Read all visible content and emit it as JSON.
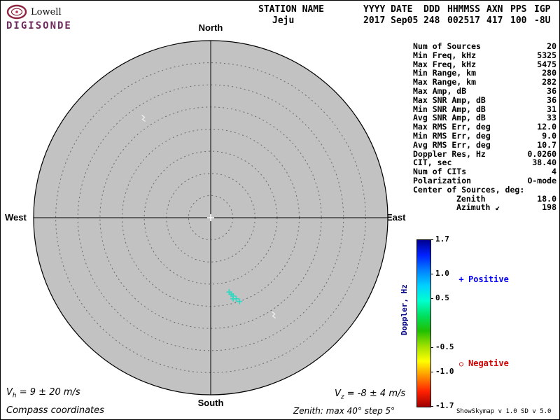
{
  "logo": {
    "name": "Lowell",
    "product": "DIGISONDE",
    "color": "#6e2a5c"
  },
  "header": {
    "columns": [
      {
        "label": "STATION NAME",
        "value": "Jeju"
      },
      {
        "label": "YYYY DATE",
        "value": "2017 Sep05"
      },
      {
        "label": "DDD",
        "value": "248"
      },
      {
        "label": "HHMMSS",
        "value": "002517"
      },
      {
        "label": "AXN",
        "value": "417"
      },
      {
        "label": "PPS",
        "value": "100"
      },
      {
        "label": "IGP",
        "value": "-8U"
      }
    ]
  },
  "compass": {
    "north": "North",
    "south": "South",
    "east": "East",
    "west": "West"
  },
  "info_panel": {
    "rows": [
      {
        "label": "Num of Sources",
        "value": "20"
      },
      {
        "label": "Min Freq, kHz",
        "value": "5325"
      },
      {
        "label": "Max Freq, kHz",
        "value": "5475"
      },
      {
        "label": "Min Range, km",
        "value": "280"
      },
      {
        "label": "Max Range, km",
        "value": "282"
      },
      {
        "label": "Max Amp, dB",
        "value": "36"
      },
      {
        "label": "Max SNR Amp, dB",
        "value": "36"
      },
      {
        "label": "Min SNR Amp, dB",
        "value": "31"
      },
      {
        "label": "Avg SNR Amp, dB",
        "value": "33"
      },
      {
        "label": "Max RMS Err, deg",
        "value": "12.0"
      },
      {
        "label": "Min RMS Err, deg",
        "value": "9.0"
      },
      {
        "label": "Avg RMS Err, deg",
        "value": "10.7"
      },
      {
        "label": "Doppler Res, Hz",
        "value": "0.0260"
      },
      {
        "label": "CIT, sec",
        "value": "38.40"
      },
      {
        "label": "Num of CITs",
        "value": "4"
      },
      {
        "label": "Polarization",
        "value": "O-mode"
      },
      {
        "label": "Center of Sources, deg:",
        "value": ""
      },
      {
        "label": "Zenith",
        "value": "18.0",
        "indent": true
      },
      {
        "label": "Azimuth",
        "value": "198",
        "indent": true,
        "icon_char": "↙"
      }
    ]
  },
  "colorbar": {
    "label": "Doppler, Hz",
    "label_color": "#00008b",
    "max": 1.7,
    "min": -1.7,
    "ticks": [
      "1.7",
      "1.0",
      "0.5",
      "-0.5",
      "-1.0",
      "-1.7"
    ],
    "tick_values": [
      1.7,
      1.0,
      0.5,
      -0.5,
      -1.0,
      -1.7
    ],
    "gradient": [
      "#000090",
      "#0020ff",
      "#0080ff",
      "#00d0ff",
      "#00ffd0",
      "#00e060",
      "#20c000",
      "#a0e000",
      "#ffff00",
      "#ff9000",
      "#ff2000",
      "#a00000"
    ]
  },
  "legend": {
    "positive": {
      "symbol": "+",
      "label": "Positive",
      "color": "#0000ee"
    },
    "negative": {
      "symbol": "○",
      "label": "Negative",
      "color": "#cc0000"
    }
  },
  "footer": {
    "vh": {
      "base": "V",
      "sub": "h",
      "rest": " = 9 ± 20 m/s"
    },
    "vz": {
      "base": "V",
      "sub": "z",
      "rest": " = -8 ± 4 m/s"
    },
    "coordinates_note": "Compass coordinates",
    "zenith_note": "Zenith: max 40°  step 5°",
    "version": "ShowSkymap v 1.0  SD v 5.0"
  },
  "chart_data": {
    "type": "scatter",
    "projection": "polar-skymap",
    "title": "",
    "plot_bg": "#c2c2c2",
    "grid": "dashed-rings",
    "zenith_max_deg": 40,
    "zenith_step_deg": 5,
    "compass_labels": [
      "North",
      "East",
      "South",
      "West"
    ],
    "colorbar": {
      "label": "Doppler, Hz",
      "min": -1.7,
      "max": 1.7,
      "tick_values": [
        1.7,
        1.0,
        0.5,
        -0.5,
        -1.0,
        -1.7
      ]
    },
    "sources": [
      {
        "azimuth_deg": 166,
        "zenith_deg": 17.3,
        "doppler_hz": 0.45,
        "marker": "plus",
        "color": "#2ed9c3"
      },
      {
        "azimuth_deg": 165,
        "zenith_deg": 17.9,
        "doppler_hz": 0.45,
        "marker": "plus",
        "color": "#2ed9c3"
      },
      {
        "azimuth_deg": 164,
        "zenith_deg": 18.4,
        "doppler_hz": 0.5,
        "marker": "plus",
        "color": "#2ed9c3"
      },
      {
        "azimuth_deg": 164.5,
        "zenith_deg": 19.0,
        "doppler_hz": 0.5,
        "marker": "plus",
        "color": "#2ed9c3"
      },
      {
        "azimuth_deg": 162.5,
        "zenith_deg": 19.2,
        "doppler_hz": 0.45,
        "marker": "plus",
        "color": "#2ed9c3"
      },
      {
        "azimuth_deg": 161,
        "zenith_deg": 20.0,
        "doppler_hz": 0.5,
        "marker": "plus",
        "color": "#2ed9c3"
      },
      {
        "azimuth_deg": 326,
        "zenith_deg": 27.0,
        "marker": "squiggle",
        "color": "#efefef"
      },
      {
        "azimuth_deg": 147,
        "zenith_deg": 26.3,
        "marker": "squiggle",
        "color": "#efefef"
      }
    ],
    "center_of_sources": {
      "zenith_deg": 18.0,
      "azimuth_deg": 198
    },
    "velocities": {
      "vh_ms": "9 ± 20",
      "vz_ms": "-8 ± 4"
    }
  }
}
